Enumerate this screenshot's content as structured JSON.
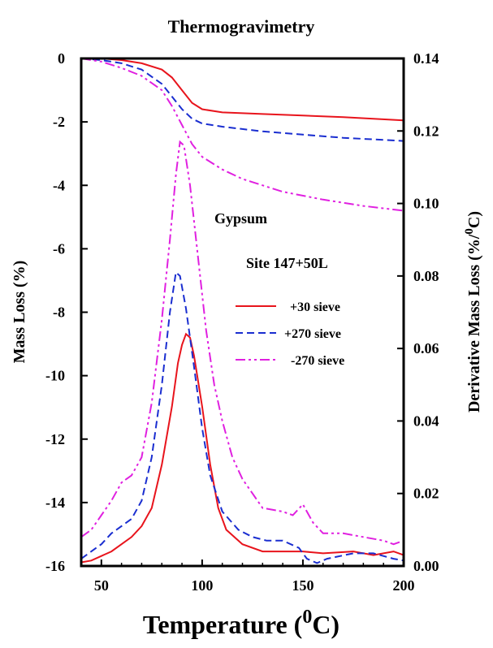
{
  "chart_data": {
    "type": "line",
    "title": "Thermogravimetry",
    "xlabel": "Temperature (",
    "xlabel_sup": "0",
    "xlabel_tail": "C)",
    "ylabel_left": "Mass Loss (%)",
    "ylabel_right": "Derivative Mass Loss (%/",
    "ylabel_right_sup": "0",
    "ylabel_right_tail": "C)",
    "xlim": [
      40,
      200
    ],
    "ylim_left": [
      -16,
      0
    ],
    "ylim_right": [
      0,
      0.14
    ],
    "x_ticks": [
      "50",
      "100",
      "150",
      "200"
    ],
    "y_left_ticks": [
      "0",
      "-2",
      "-4",
      "-6",
      "-8",
      "-10",
      "-12",
      "-14",
      "-16"
    ],
    "y_right_ticks": [
      "0.14",
      "0.12",
      "0.10",
      "0.08",
      "0.06",
      "0.04",
      "0.02",
      "0.00"
    ],
    "annotations": [
      "Gypsum",
      "Site 147+50L"
    ],
    "legend_position": "center-right",
    "series": [
      {
        "name": "+30 sieve",
        "axis": "left",
        "color": "#e8141c",
        "dash": "solid",
        "points": [
          [
            40,
            0
          ],
          [
            50,
            0
          ],
          [
            60,
            -0.05
          ],
          [
            70,
            -0.15
          ],
          [
            80,
            -0.35
          ],
          [
            85,
            -0.6
          ],
          [
            90,
            -1.0
          ],
          [
            95,
            -1.4
          ],
          [
            100,
            -1.6
          ],
          [
            110,
            -1.7
          ],
          [
            130,
            -1.75
          ],
          [
            150,
            -1.8
          ],
          [
            170,
            -1.85
          ],
          [
            200,
            -1.95
          ]
        ]
      },
      {
        "name": "+270 sieve",
        "axis": "left",
        "color": "#1a2ed0",
        "dash": "dashed",
        "points": [
          [
            40,
            0
          ],
          [
            50,
            -0.05
          ],
          [
            60,
            -0.15
          ],
          [
            70,
            -0.35
          ],
          [
            80,
            -0.8
          ],
          [
            85,
            -1.2
          ],
          [
            90,
            -1.6
          ],
          [
            95,
            -1.9
          ],
          [
            100,
            -2.05
          ],
          [
            110,
            -2.15
          ],
          [
            130,
            -2.3
          ],
          [
            150,
            -2.4
          ],
          [
            170,
            -2.5
          ],
          [
            200,
            -2.6
          ]
        ]
      },
      {
        "name": "-270 sieve",
        "axis": "left",
        "color": "#e020e0",
        "dash": "dashdot",
        "points": [
          [
            40,
            0
          ],
          [
            50,
            -0.1
          ],
          [
            60,
            -0.3
          ],
          [
            70,
            -0.55
          ],
          [
            80,
            -1.0
          ],
          [
            85,
            -1.5
          ],
          [
            90,
            -2.1
          ],
          [
            95,
            -2.7
          ],
          [
            100,
            -3.1
          ],
          [
            110,
            -3.5
          ],
          [
            120,
            -3.8
          ],
          [
            140,
            -4.2
          ],
          [
            160,
            -4.45
          ],
          [
            180,
            -4.65
          ],
          [
            200,
            -4.8
          ]
        ]
      },
      {
        "name": "+30 sieve",
        "axis": "right",
        "color": "#e8141c",
        "dash": "solid",
        "points": [
          [
            40,
            0.001
          ],
          [
            45,
            0.0015
          ],
          [
            55,
            0.004
          ],
          [
            60,
            0.006
          ],
          [
            65,
            0.008
          ],
          [
            70,
            0.011
          ],
          [
            75,
            0.016
          ],
          [
            80,
            0.028
          ],
          [
            85,
            0.044
          ],
          [
            88,
            0.056
          ],
          [
            90,
            0.061
          ],
          [
            92,
            0.064
          ],
          [
            94,
            0.063
          ],
          [
            96,
            0.058
          ],
          [
            100,
            0.044
          ],
          [
            104,
            0.028
          ],
          [
            108,
            0.016
          ],
          [
            112,
            0.01
          ],
          [
            120,
            0.006
          ],
          [
            130,
            0.004
          ],
          [
            140,
            0.004
          ],
          [
            150,
            0.004
          ],
          [
            160,
            0.0035
          ],
          [
            175,
            0.004
          ],
          [
            185,
            0.003
          ],
          [
            195,
            0.004
          ],
          [
            200,
            0.003
          ]
        ]
      },
      {
        "name": "+270 sieve",
        "axis": "right",
        "color": "#1a2ed0",
        "dash": "dashed",
        "points": [
          [
            40,
            0.002
          ],
          [
            45,
            0.004
          ],
          [
            50,
            0.006
          ],
          [
            55,
            0.009
          ],
          [
            60,
            0.011
          ],
          [
            65,
            0.013
          ],
          [
            70,
            0.018
          ],
          [
            75,
            0.03
          ],
          [
            80,
            0.05
          ],
          [
            84,
            0.07
          ],
          [
            87,
            0.081
          ],
          [
            89,
            0.08
          ],
          [
            92,
            0.071
          ],
          [
            96,
            0.055
          ],
          [
            100,
            0.038
          ],
          [
            104,
            0.025
          ],
          [
            110,
            0.015
          ],
          [
            118,
            0.01
          ],
          [
            125,
            0.008
          ],
          [
            132,
            0.007
          ],
          [
            140,
            0.007
          ],
          [
            148,
            0.005
          ],
          [
            152,
            0.002
          ],
          [
            157,
            0.0008
          ],
          [
            162,
            0.002
          ],
          [
            175,
            0.0035
          ],
          [
            185,
            0.0035
          ],
          [
            195,
            0.002
          ],
          [
            200,
            0.0015
          ]
        ]
      },
      {
        "name": "-270 sieve",
        "axis": "right",
        "color": "#e020e0",
        "dash": "dashdot",
        "points": [
          [
            40,
            0.008
          ],
          [
            45,
            0.01
          ],
          [
            50,
            0.014
          ],
          [
            55,
            0.018
          ],
          [
            60,
            0.023
          ],
          [
            65,
            0.025
          ],
          [
            70,
            0.03
          ],
          [
            75,
            0.045
          ],
          [
            80,
            0.068
          ],
          [
            84,
            0.09
          ],
          [
            87,
            0.108
          ],
          [
            89,
            0.117
          ],
          [
            91,
            0.116
          ],
          [
            94,
            0.105
          ],
          [
            98,
            0.085
          ],
          [
            102,
            0.065
          ],
          [
            106,
            0.05
          ],
          [
            110,
            0.04
          ],
          [
            115,
            0.03
          ],
          [
            120,
            0.024
          ],
          [
            125,
            0.02
          ],
          [
            130,
            0.016
          ],
          [
            140,
            0.015
          ],
          [
            145,
            0.014
          ],
          [
            150,
            0.017
          ],
          [
            155,
            0.012
          ],
          [
            160,
            0.009
          ],
          [
            170,
            0.009
          ],
          [
            180,
            0.008
          ],
          [
            190,
            0.007
          ],
          [
            195,
            0.006
          ],
          [
            200,
            0.007
          ]
        ]
      }
    ]
  }
}
